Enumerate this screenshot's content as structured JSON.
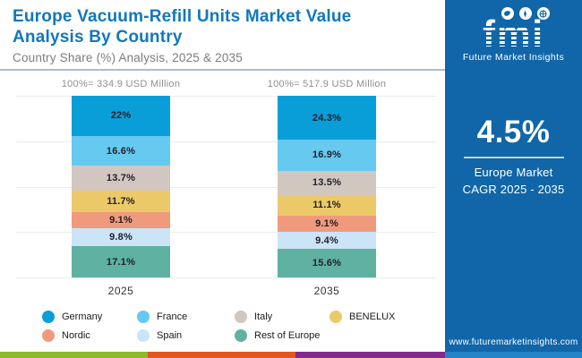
{
  "header": {
    "title": "Europe Vacuum-Refill Units Market Value Analysis By Country",
    "subtitle": "Country Share (%) Analysis, 2025 & 2035",
    "title_color": "#1277bd"
  },
  "chart_data": {
    "type": "bar",
    "stacked": true,
    "title": "Europe Vacuum-Refill Units Market Value Analysis By Country",
    "subtitle": "Country Share (%) Analysis, 2025 & 2035",
    "categories": [
      "2025",
      "2035"
    ],
    "totals": [
      "100%= 334.9 USD Million",
      "100%= 517.9 USD Million"
    ],
    "ylim": [
      0,
      100
    ],
    "grid": true,
    "legend_position": "bottom",
    "series": [
      {
        "name": "Germany",
        "color": "#0a9ed9",
        "values": [
          22,
          24.3
        ]
      },
      {
        "name": "France",
        "color": "#66c9ef",
        "values": [
          16.6,
          16.9
        ]
      },
      {
        "name": "Italy",
        "color": "#d1c6c0",
        "values": [
          13.7,
          13.5
        ]
      },
      {
        "name": "BENELUX",
        "color": "#ecc968",
        "values": [
          11.7,
          11.1
        ]
      },
      {
        "name": "Nordic",
        "color": "#f09a7d",
        "values": [
          9.1,
          9.1
        ]
      },
      {
        "name": "Spain",
        "color": "#cbe4f6",
        "values": [
          9.8,
          9.4
        ]
      },
      {
        "name": "Rest of Europe",
        "color": "#5fb1a1",
        "values": [
          17.1,
          15.6
        ]
      }
    ]
  },
  "sidebar": {
    "logo_text": "fmi",
    "logo_subtext": "Future Market Insights",
    "cagr_value": "4.5%",
    "cagr_label_line1": "Europe Market",
    "cagr_label_line2": "CAGR 2025 - 2035",
    "website": "www.futuremarketinsights.com",
    "bg_color": "#1066a8"
  },
  "footer": {
    "stripe_colors": [
      "#8cbb2d",
      "#e3571e",
      "#832b8d"
    ]
  }
}
